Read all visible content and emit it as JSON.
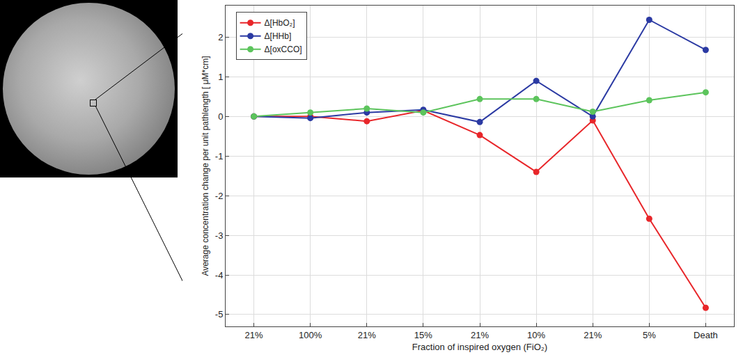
{
  "chart_data": {
    "type": "line",
    "categories": [
      "21%",
      "100%",
      "21%",
      "15%",
      "21%",
      "10%",
      "21%",
      "5%",
      "Death"
    ],
    "x_label": "Fraction of inspired oxygen (FiO₂)",
    "y_label": "Average concentration change per unit pathlength [ μM*cm]",
    "series": [
      {
        "name": "Δ[HbO₂]",
        "color": "#e8262a",
        "marker": "circle",
        "values": [
          0,
          0,
          -0.12,
          0.15,
          -0.47,
          -1.4,
          -0.1,
          -2.58,
          -4.83
        ]
      },
      {
        "name": "Δ[HHb]",
        "color": "#2b3aa3",
        "marker": "circle",
        "values": [
          0,
          -0.04,
          0.1,
          0.17,
          -0.14,
          0.9,
          0,
          2.44,
          1.68
        ]
      },
      {
        "name": "Δ[oxCCO]",
        "color": "#5cc45c",
        "marker": "circle",
        "values": [
          0,
          0.1,
          0.2,
          0.1,
          0.44,
          0.44,
          0.12,
          0.41,
          0.61
        ]
      }
    ],
    "ylim": [
      -5.3,
      2.8
    ],
    "yticks": [
      -5,
      -4,
      -3,
      -2,
      -1,
      0,
      1,
      2
    ],
    "grid": true,
    "legend": "upper left"
  }
}
